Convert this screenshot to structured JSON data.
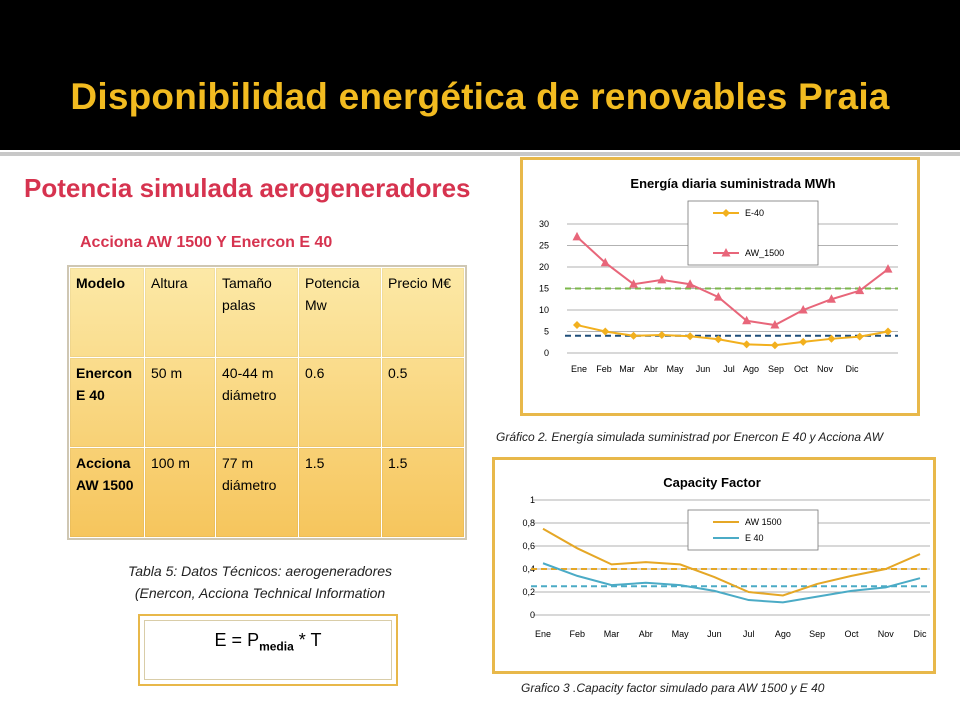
{
  "slide": {
    "title": "Disponibilidad energética de renovables Praia",
    "subtitle": "Potencia simulada aerogeneradores",
    "table_caption": "Acciona AW 1500 Y Enercon E 40",
    "table": {
      "headers": [
        "Modelo",
        "Altura",
        "Tamaño palas",
        "Potencia Mw",
        "Precio M€"
      ],
      "rows": [
        [
          "Enercon E 40",
          "50 m",
          "40-44 m diámetro",
          "0.6",
          "0.5"
        ],
        [
          "Acciona AW 1500",
          "100 m",
          "77 m diámetro",
          "1.5",
          "1.5"
        ]
      ]
    },
    "table_note_1": "Tabla 5: Datos Técnicos: aerogeneradores",
    "table_note_2": "(Enercon, Acciona Technical Information",
    "formula": {
      "lhs": "E = P",
      "sub": "media",
      "rhs": " * T"
    },
    "caption_chart1": "Gráfico 2. Energía simulada suministrad por Enercon E 40 y Acciona AW",
    "caption_chart2": "Grafico 3 .Capacity factor simulado para AW 1500 y E 40"
  },
  "colors": {
    "title": "#f2bb20",
    "subtitle": "#d6334f",
    "frame": "#e8b84a",
    "e40": "#f2b01e",
    "aw1500": "#e8667a",
    "cf_aw": "#e5a726",
    "cf_e40": "#4babc6",
    "green_ref": "#7cb84b",
    "blue_ref": "#1f4e79"
  },
  "chart_data": [
    {
      "type": "line",
      "title": "Energía diaria suministrada MWh",
      "categories": [
        "Ene",
        "Feb",
        "Mar",
        "Abr",
        "May",
        "Jun",
        "Jul",
        "Ago",
        "Sep",
        "Oct",
        "Nov",
        "Dic"
      ],
      "series": [
        {
          "name": "E-40",
          "values": [
            6.5,
            5,
            4,
            4.2,
            3.9,
            3.2,
            2,
            1.8,
            2.6,
            3.3,
            3.8,
            5
          ]
        },
        {
          "name": "AW_1500",
          "values": [
            27,
            21,
            16,
            17,
            16,
            13,
            7.5,
            6.5,
            10,
            12.5,
            14.5,
            19.5
          ]
        }
      ],
      "reference_lines": [
        {
          "value": 15,
          "color": "green",
          "style": "dashed"
        },
        {
          "value": 4,
          "color": "dark-blue",
          "style": "dashed"
        }
      ],
      "yticks": [
        "0",
        "5",
        "10",
        "15",
        "20",
        "25",
        "30"
      ],
      "ylim": [
        0,
        30
      ],
      "grid": true,
      "legend": "top-center"
    },
    {
      "type": "line",
      "title": "Capacity Factor",
      "categories": [
        "Ene",
        "Feb",
        "Mar",
        "Abr",
        "May",
        "Jun",
        "Jul",
        "Ago",
        "Sep",
        "Oct",
        "Nov",
        "Dic"
      ],
      "series": [
        {
          "name": "AW 1500",
          "values": [
            0.75,
            0.58,
            0.44,
            0.46,
            0.44,
            0.33,
            0.2,
            0.17,
            0.27,
            0.34,
            0.4,
            0.53
          ]
        },
        {
          "name": "E 40",
          "values": [
            0.45,
            0.34,
            0.26,
            0.28,
            0.26,
            0.21,
            0.13,
            0.11,
            0.16,
            0.21,
            0.24,
            0.32
          ]
        }
      ],
      "reference_lines": [
        {
          "value": 0.4,
          "color": "orange",
          "style": "dashed"
        },
        {
          "value": 0.25,
          "color": "light-blue",
          "style": "dashed"
        }
      ],
      "yticks": [
        "0",
        "0,2",
        "0,4",
        "0,6",
        "0,8",
        "1"
      ],
      "ylim": [
        0,
        1
      ],
      "grid": true,
      "legend": "top-center"
    }
  ]
}
